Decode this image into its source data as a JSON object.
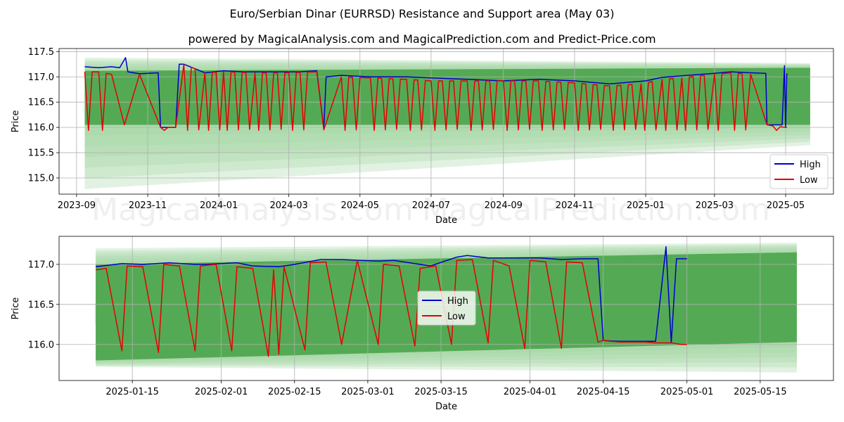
{
  "title": "Euro/Serbian Dinar (EURRSD) Resistance and Support area (May 03)",
  "subtitle": "powered by MagicalAnalysis.com and MagicalPrediction.com and Predict-Price.com",
  "watermarks": [
    "MagicalAnalysis.com",
    "MagicalPrediction.com"
  ],
  "colors": {
    "high": "#0000cc",
    "low": "#e60000",
    "band": "#4ca64c",
    "band_light": "#a5d6a5"
  },
  "chart_data": [
    {
      "type": "line",
      "xlabel": "Date",
      "ylabel": "Price",
      "xlim": [
        "2023-08-17",
        "2025-06-11"
      ],
      "ylim": [
        114.68,
        117.56
      ],
      "x_ticks": [
        "2023-09",
        "2023-11",
        "2024-01",
        "2024-03",
        "2024-05",
        "2024-07",
        "2024-09",
        "2024-11",
        "2025-01",
        "2025-03",
        "2025-05"
      ],
      "x_tick_dates": [
        "2023-09-01",
        "2023-11-01",
        "2024-01-01",
        "2024-03-01",
        "2024-05-01",
        "2024-07-01",
        "2024-09-01",
        "2024-11-01",
        "2025-01-01",
        "2025-03-01",
        "2025-05-01"
      ],
      "y_ticks": [
        115.0,
        115.5,
        116.0,
        116.5,
        117.0,
        117.5
      ],
      "y_tick_labels": [
        "115.0",
        "115.5",
        "116.0",
        "116.5",
        "117.0",
        "117.5"
      ],
      "grid": true,
      "legend": {
        "position": "lower-right",
        "entries": [
          "High",
          "Low"
        ]
      },
      "band": {
        "x_start": "2023-09-08",
        "x_end": "2025-05-22",
        "upper_start": 117.38,
        "upper_end": 117.27,
        "lower_start": 114.78,
        "lower_end": 115.65,
        "core_upper_start": 117.12,
        "core_upper_end": 117.18,
        "core_lower_start": 116.05,
        "core_lower_end": 116.05
      },
      "series": [
        {
          "name": "High",
          "x": [
            "2023-09-08",
            "2023-09-20",
            "2023-10-01",
            "2023-10-08",
            "2023-10-13",
            "2023-10-15",
            "2023-10-25",
            "2023-11-10",
            "2023-11-12",
            "2023-11-25",
            "2023-11-28",
            "2023-12-02",
            "2023-12-20",
            "2024-01-05",
            "2024-01-22",
            "2024-02-15",
            "2024-03-10",
            "2024-03-25",
            "2024-03-31",
            "2024-04-02",
            "2024-04-15",
            "2024-05-10",
            "2024-06-10",
            "2024-07-01",
            "2024-08-01",
            "2024-09-01",
            "2024-10-01",
            "2024-11-01",
            "2024-12-01",
            "2025-01-01",
            "2025-01-15",
            "2025-02-01",
            "2025-03-01",
            "2025-03-15",
            "2025-04-01",
            "2025-04-14",
            "2025-04-15",
            "2025-04-28",
            "2025-04-30",
            "2025-05-01",
            "2025-05-02"
          ],
          "values": [
            117.2,
            117.18,
            117.2,
            117.18,
            117.38,
            117.1,
            117.06,
            117.08,
            116.0,
            116.0,
            117.25,
            117.25,
            117.08,
            117.12,
            117.1,
            117.1,
            117.1,
            117.12,
            115.98,
            117.0,
            117.03,
            117.0,
            117.0,
            116.98,
            116.95,
            116.92,
            116.95,
            116.92,
            116.86,
            116.92,
            116.99,
            117.02,
            117.07,
            117.1,
            117.08,
            117.07,
            116.05,
            116.05,
            117.22,
            116.0,
            117.07
          ]
        },
        {
          "name": "Low",
          "x": [
            "2023-09-08",
            "2023-09-20",
            "2023-10-01",
            "2023-10-12",
            "2023-10-25",
            "2023-11-12",
            "2023-11-25",
            "2023-12-02",
            "2023-12-20",
            "2024-01-05",
            "2024-02-01",
            "2024-03-01",
            "2024-03-25",
            "2024-03-31",
            "2024-04-15",
            "2024-05-10",
            "2024-06-10",
            "2024-07-01",
            "2024-08-01",
            "2024-09-01",
            "2024-10-01",
            "2024-11-01",
            "2024-12-01",
            "2024-12-28",
            "2025-01-15",
            "2025-02-01",
            "2025-03-01",
            "2025-03-15",
            "2025-04-01",
            "2025-04-15",
            "2025-04-20",
            "2025-05-01",
            "2025-05-02"
          ],
          "values": [
            117.1,
            117.1,
            117.05,
            116.05,
            117.05,
            116.0,
            116.0,
            117.25,
            117.08,
            117.1,
            117.08,
            117.08,
            117.1,
            115.95,
            117.0,
            116.98,
            116.95,
            116.92,
            116.92,
            116.92,
            116.92,
            116.88,
            116.82,
            116.86,
            116.95,
            116.98,
            117.05,
            117.08,
            117.05,
            116.05,
            116.03,
            116.0,
            116.0
          ],
          "drops_to": 115.9,
          "drops_mean_step_days": 3.2
        }
      ]
    },
    {
      "type": "line",
      "xlabel": "Date",
      "ylabel": "Price",
      "xlim": [
        "2025-01-01",
        "2025-05-29"
      ],
      "ylim": [
        115.55,
        117.35
      ],
      "x_ticks": [
        "2025-01-15",
        "2025-02-01",
        "2025-02-15",
        "2025-03-01",
        "2025-03-15",
        "2025-04-01",
        "2025-04-15",
        "2025-05-01",
        "2025-05-15"
      ],
      "y_ticks": [
        116.0,
        116.5,
        117.0
      ],
      "y_tick_labels": [
        "116.0",
        "116.5",
        "117.0"
      ],
      "grid": true,
      "legend": {
        "position": "center",
        "entries": [
          "High",
          "Low"
        ]
      },
      "band": {
        "x_start": "2025-01-08",
        "x_end": "2025-05-22",
        "upper_start": 117.2,
        "upper_end": 117.27,
        "lower_start": 115.72,
        "lower_end": 115.65,
        "core_upper_start": 117.0,
        "core_upper_end": 117.15,
        "core_lower_start": 115.8,
        "core_lower_end": 116.03
      },
      "series": [
        {
          "name": "High",
          "x": [
            "2025-01-08",
            "2025-01-13",
            "2025-01-17",
            "2025-01-22",
            "2025-01-27",
            "2025-01-29",
            "2025-02-04",
            "2025-02-07",
            "2025-02-12",
            "2025-02-15",
            "2025-02-20",
            "2025-02-24",
            "2025-03-03",
            "2025-03-06",
            "2025-03-13",
            "2025-03-18",
            "2025-03-20",
            "2025-03-24",
            "2025-03-27",
            "2025-04-03",
            "2025-04-07",
            "2025-04-11",
            "2025-04-14",
            "2025-04-15",
            "2025-04-18",
            "2025-04-25",
            "2025-04-27",
            "2025-04-28",
            "2025-04-29",
            "2025-04-30",
            "2025-05-01"
          ],
          "values": [
            116.97,
            117.01,
            117.0,
            117.02,
            117.0,
            117.0,
            117.02,
            116.98,
            116.97,
            117.0,
            117.06,
            117.06,
            117.04,
            117.05,
            116.98,
            117.09,
            117.11,
            117.08,
            117.08,
            117.08,
            117.06,
            117.07,
            117.07,
            116.05,
            116.04,
            116.04,
            117.22,
            116.02,
            117.07,
            117.07,
            117.07
          ]
        },
        {
          "name": "Low",
          "x": [
            "2025-01-08",
            "2025-01-10",
            "2025-01-13",
            "2025-01-14",
            "2025-01-17",
            "2025-01-20",
            "2025-01-21",
            "2025-01-24",
            "2025-01-27",
            "2025-01-28",
            "2025-01-31",
            "2025-02-03",
            "2025-02-04",
            "2025-02-07",
            "2025-02-10",
            "2025-02-11",
            "2025-02-12",
            "2025-02-13",
            "2025-02-17",
            "2025-02-18",
            "2025-02-21",
            "2025-02-24",
            "2025-02-27",
            "2025-03-03",
            "2025-03-04",
            "2025-03-07",
            "2025-03-10",
            "2025-03-11",
            "2025-03-14",
            "2025-03-17",
            "2025-03-18",
            "2025-03-21",
            "2025-03-24",
            "2025-03-25",
            "2025-03-28",
            "2025-03-31",
            "2025-04-01",
            "2025-04-04",
            "2025-04-07",
            "2025-04-08",
            "2025-04-11",
            "2025-04-14",
            "2025-04-15",
            "2025-04-18",
            "2025-04-23",
            "2025-04-25",
            "2025-04-28",
            "2025-04-30",
            "2025-05-01"
          ],
          "values": [
            116.93,
            116.95,
            115.92,
            116.98,
            116.97,
            115.9,
            117.0,
            116.98,
            115.92,
            116.98,
            117.0,
            115.92,
            116.97,
            116.95,
            115.85,
            116.93,
            115.88,
            116.97,
            115.93,
            117.02,
            117.03,
            116.0,
            117.05,
            116.0,
            117.0,
            116.98,
            115.98,
            116.95,
            116.98,
            116.0,
            117.05,
            117.06,
            116.02,
            117.05,
            116.98,
            115.95,
            117.05,
            117.03,
            115.95,
            117.03,
            117.02,
            116.03,
            116.05,
            116.03,
            116.03,
            116.02,
            116.02,
            116.0,
            116.0
          ]
        }
      ]
    }
  ]
}
